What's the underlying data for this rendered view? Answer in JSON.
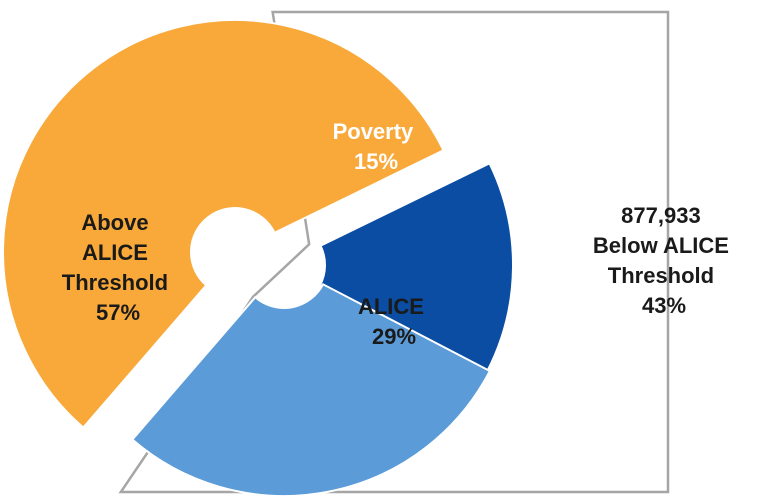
{
  "chart_data": {
    "type": "pie",
    "variant": "donut-exploded",
    "slices": [
      {
        "key": "above",
        "label_lines": [
          "Above",
          "ALICE",
          "Threshold"
        ],
        "pct_label": "57%",
        "value": 57,
        "color": "#F8A93A",
        "text_color": "#1a1a1a"
      },
      {
        "key": "poverty",
        "label_lines": [
          "Poverty"
        ],
        "pct_label": "15%",
        "value": 15,
        "color": "#0A4DA2",
        "text_color": "#ffffff"
      },
      {
        "key": "alice",
        "label_lines": [
          "ALICE"
        ],
        "pct_label": "29%",
        "value": 29,
        "color": "#5B9BD8",
        "text_color": "#1a1a1a"
      }
    ],
    "callout": {
      "lines": [
        "877,933",
        "Below ALICE",
        "Threshold"
      ],
      "pct_label": "43%",
      "value": 877933,
      "border_color": "#A6A6A6"
    }
  }
}
